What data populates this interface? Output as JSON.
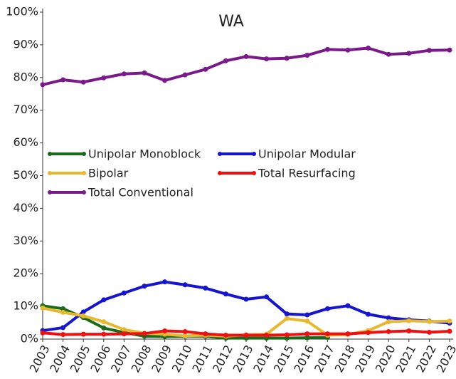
{
  "chart_data": {
    "type": "line",
    "title": "WA",
    "categories": [
      "2003",
      "2004",
      "2005",
      "2006",
      "2007",
      "2008",
      "2009",
      "2010",
      "2011",
      "2012",
      "2013",
      "2014",
      "2015",
      "2016",
      "2017",
      "2018",
      "2019",
      "2020",
      "2021",
      "2022",
      "2023"
    ],
    "series": [
      {
        "name": "Unipolar Monoblock",
        "color": "#1a6b1a",
        "values": [
          10.2,
          9.3,
          6.6,
          3.4,
          2.0,
          0.9,
          0.8,
          0.9,
          0.9,
          0.3,
          0.3,
          0.3,
          0.3,
          0.4,
          0.5,
          null,
          null,
          null,
          null,
          null,
          null
        ]
      },
      {
        "name": "Unipolar Modular",
        "color": "#1515d0",
        "values": [
          2.6,
          3.5,
          8.3,
          12.0,
          14.1,
          16.2,
          17.5,
          16.6,
          15.6,
          13.8,
          12.2,
          12.9,
          7.7,
          7.4,
          9.3,
          10.2,
          7.6,
          6.5,
          5.9,
          5.5,
          4.9
        ]
      },
      {
        "name": "Bipolar",
        "color": "#e8b830",
        "values": [
          9.5,
          8.2,
          7.1,
          5.3,
          2.9,
          1.8,
          1.5,
          1.0,
          1.2,
          0.9,
          1.3,
          1.5,
          6.3,
          5.5,
          1.2,
          1.4,
          2.6,
          5.3,
          5.6,
          5.4,
          5.5
        ]
      },
      {
        "name": "Total Resurfacing",
        "color": "#ee1111",
        "values": [
          1.9,
          1.4,
          1.5,
          1.5,
          1.6,
          1.7,
          2.5,
          2.3,
          1.6,
          1.2,
          1.2,
          1.2,
          1.3,
          1.6,
          1.6,
          1.6,
          2.0,
          2.3,
          2.5,
          2.1,
          2.4
        ]
      },
      {
        "name": "Total Conventional",
        "color": "#7a1a8a",
        "values": [
          77.8,
          79.3,
          78.6,
          79.9,
          81.1,
          81.4,
          79.1,
          80.8,
          82.5,
          85.1,
          86.4,
          85.7,
          85.9,
          86.8,
          88.6,
          88.4,
          89.0,
          87.1,
          87.4,
          88.3,
          88.4
        ]
      }
    ],
    "ylim": [
      0,
      100
    ],
    "yticks": [
      {
        "value": 0,
        "label": "0%"
      },
      {
        "value": 10,
        "label": "10%"
      },
      {
        "value": 20,
        "label": "20%"
      },
      {
        "value": 30,
        "label": "30%"
      },
      {
        "value": 40,
        "label": "40%"
      },
      {
        "value": 50,
        "label": "50%"
      },
      {
        "value": 60,
        "label": "60%"
      },
      {
        "value": 70,
        "label": "70%"
      },
      {
        "value": 80,
        "label": "80%"
      },
      {
        "value": 90,
        "label": "90%"
      },
      {
        "value": 100,
        "label": "100%"
      }
    ],
    "grid": false
  }
}
